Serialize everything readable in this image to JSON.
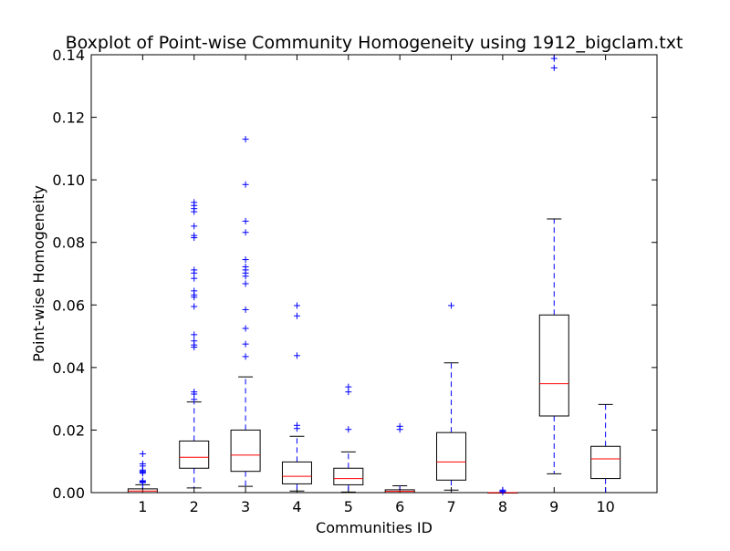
{
  "chart_data": {
    "type": "box",
    "title": "Boxplot of Point-wise Community Homogeneity using 1912_bigclam.txt",
    "xlabel": "Communities ID",
    "ylabel": "Point-wise Homogeneity",
    "ylim": [
      0,
      0.14
    ],
    "yticks": [
      0.0,
      0.02,
      0.04,
      0.06,
      0.08,
      0.1,
      0.12,
      0.14
    ],
    "ytick_labels": [
      "0.00",
      "0.02",
      "0.04",
      "0.06",
      "0.08",
      "0.10",
      "0.12",
      "0.14"
    ],
    "categories": [
      "1",
      "2",
      "3",
      "4",
      "5",
      "6",
      "7",
      "8",
      "9",
      "10"
    ],
    "boxes": [
      {
        "category": "1",
        "whisker_low": 0.0,
        "q1": 0.0,
        "median": 0.0005,
        "q3": 0.0012,
        "whisker_high": 0.0025,
        "outliers": [
          0.0032,
          0.0035,
          0.0038,
          0.0062,
          0.0065,
          0.0068,
          0.0072,
          0.0085,
          0.0092,
          0.0124
        ]
      },
      {
        "category": "2",
        "whisker_low": 0.0015,
        "q1": 0.0078,
        "median": 0.0113,
        "q3": 0.0165,
        "whisker_high": 0.029,
        "outliers": [
          0.0298,
          0.0315,
          0.0322,
          0.0465,
          0.0472,
          0.0485,
          0.0505,
          0.0595,
          0.0625,
          0.0632,
          0.0645,
          0.0685,
          0.0702,
          0.0712,
          0.0815,
          0.0822,
          0.0852,
          0.0898,
          0.0908,
          0.0918,
          0.0928
        ]
      },
      {
        "category": "3",
        "whisker_low": 0.002,
        "q1": 0.0068,
        "median": 0.012,
        "q3": 0.02,
        "whisker_high": 0.037,
        "outliers": [
          0.0435,
          0.0475,
          0.0525,
          0.0585,
          0.0668,
          0.0692,
          0.0702,
          0.0712,
          0.0722,
          0.0745,
          0.0832,
          0.0868,
          0.0985,
          0.113
        ]
      },
      {
        "category": "4",
        "whisker_low": 0.0005,
        "q1": 0.0028,
        "median": 0.0052,
        "q3": 0.0098,
        "whisker_high": 0.018,
        "outliers": [
          0.0205,
          0.0215,
          0.0438,
          0.0565,
          0.0598
        ]
      },
      {
        "category": "5",
        "whisker_low": 0.0002,
        "q1": 0.0025,
        "median": 0.0045,
        "q3": 0.0078,
        "whisker_high": 0.013,
        "outliers": [
          0.0202,
          0.0322,
          0.0338
        ]
      },
      {
        "category": "6",
        "whisker_low": 0.0,
        "q1": 0.0,
        "median": 0.0004,
        "q3": 0.0009,
        "whisker_high": 0.0022,
        "outliers": [
          0.0202,
          0.0212
        ]
      },
      {
        "category": "7",
        "whisker_low": 0.0008,
        "q1": 0.004,
        "median": 0.0098,
        "q3": 0.0192,
        "whisker_high": 0.0415,
        "outliers": [
          0.0598
        ]
      },
      {
        "category": "8",
        "whisker_low": 0.0,
        "q1": 0.0,
        "median": 0.0,
        "q3": 0.0,
        "whisker_high": 0.0,
        "outliers": [
          0.0002,
          0.0005,
          0.0008
        ]
      },
      {
        "category": "9",
        "whisker_low": 0.006,
        "q1": 0.0245,
        "median": 0.0348,
        "q3": 0.0568,
        "whisker_high": 0.0875,
        "outliers": [
          0.1358,
          0.1388
        ]
      },
      {
        "category": "10",
        "whisker_low": 0.0,
        "q1": 0.0045,
        "median": 0.0108,
        "q3": 0.0148,
        "whisker_high": 0.0282,
        "outliers": []
      }
    ],
    "colors": {
      "box": "#000000",
      "median": "#ff0000",
      "whisker": "#0000ff",
      "outlier": "#0000ff"
    },
    "grid": false
  }
}
